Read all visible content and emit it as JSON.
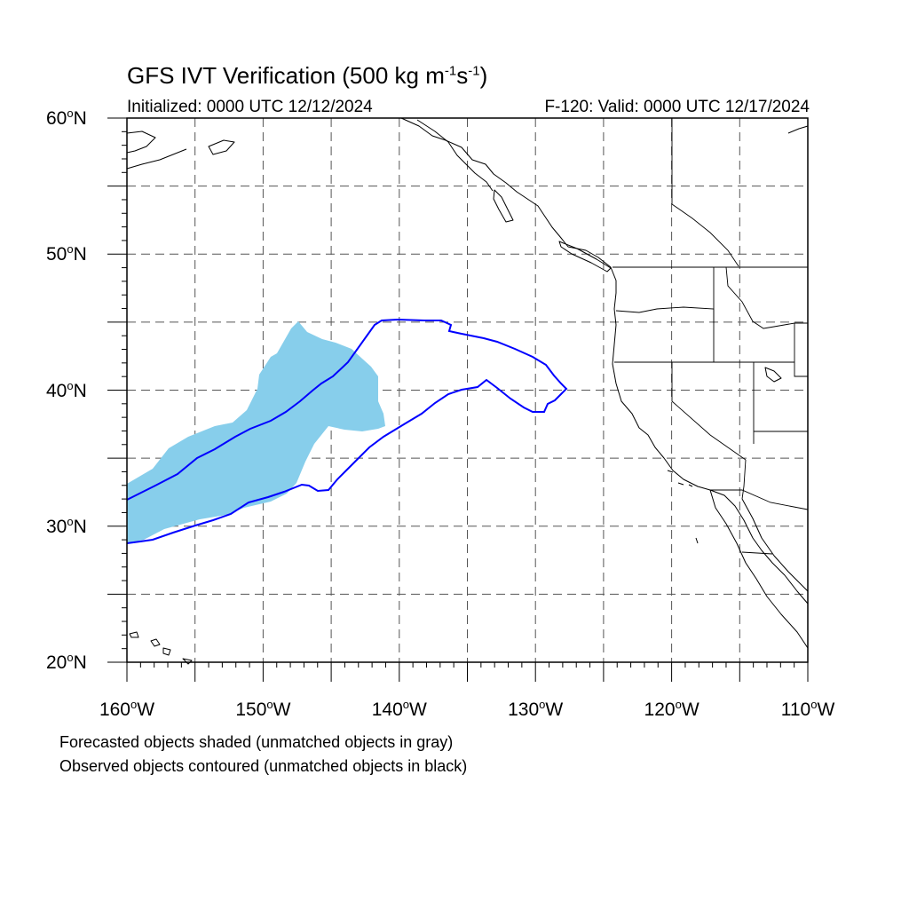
{
  "title": {
    "text": "GFS IVT Verification (500 kg m",
    "sup1": "-1",
    "mid": "s",
    "sup2": "-1",
    "end": ")"
  },
  "initialized": "Initialized: 0000 UTC 12/12/2024",
  "valid": "F-120: Valid: 0000 UTC 12/17/2024",
  "map": {
    "extent": {
      "lon_min": -160,
      "lon_max": -110,
      "lat_min": 20,
      "lat_max": 60
    },
    "lat_labels": [
      {
        "lat": 60,
        "num": "60",
        "deg": "o",
        "hem": "N"
      },
      {
        "lat": 50,
        "num": "50",
        "deg": "o",
        "hem": "N"
      },
      {
        "lat": 40,
        "num": "40",
        "deg": "o",
        "hem": "N"
      },
      {
        "lat": 30,
        "num": "30",
        "deg": "o",
        "hem": "N"
      },
      {
        "lat": 20,
        "num": "20",
        "deg": "o",
        "hem": "N"
      }
    ],
    "lon_labels": [
      {
        "lon": -160,
        "num": "160",
        "deg": "o",
        "hem": "W"
      },
      {
        "lon": -150,
        "num": "150",
        "deg": "o",
        "hem": "W"
      },
      {
        "lon": -140,
        "num": "140",
        "deg": "o",
        "hem": "W"
      },
      {
        "lon": -130,
        "num": "130",
        "deg": "o",
        "hem": "W"
      },
      {
        "lon": -120,
        "num": "120",
        "deg": "o",
        "hem": "W"
      },
      {
        "lon": -110,
        "num": "110",
        "deg": "o",
        "hem": "W"
      }
    ],
    "grid_interval_deg": 5,
    "forecast_object_color": "#87ceeb",
    "observed_contour_color": "#0000ff",
    "coast_color": "#000000"
  },
  "notes": {
    "line1": "Forecasted objects shaded (unmatched objects in gray)",
    "line2": "Observed objects contoured (unmatched objects in black)"
  }
}
